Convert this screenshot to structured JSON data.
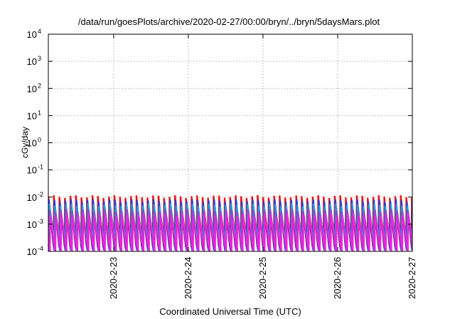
{
  "chart_data": {
    "type": "line",
    "title": "/data/run/goesPlots/archive/2020-02-27/00:00/bryn/../bryn/5daysMars.plot",
    "xlabel": "Coordinated Universal Time (UTC)",
    "ylabel": "cGy/day",
    "y_scale": "log",
    "ylim": [
      0.0001,
      10000
    ],
    "xlim": [
      "2020-02-22 03:00",
      "2020-02-27 00:00"
    ],
    "grid": true,
    "x_ticks": [
      "2020-2-23",
      "2020-2-24",
      "2020-2-25",
      "2020-2-26",
      "2020-2-27"
    ],
    "y_ticks": [
      {
        "base": "10",
        "exp": "-4"
      },
      {
        "base": "10",
        "exp": "-3"
      },
      {
        "base": "10",
        "exp": "-2"
      },
      {
        "base": "10",
        "exp": "-1"
      },
      {
        "base": "10",
        "exp": "0"
      },
      {
        "base": "10",
        "exp": "1"
      },
      {
        "base": "10",
        "exp": "2"
      },
      {
        "base": "10",
        "exp": "3"
      },
      {
        "base": "10",
        "exp": "4"
      }
    ],
    "sawtooth_period_hours": 1.77,
    "series": [
      {
        "color": "#ee1111",
        "peak": 0.0105,
        "trough": 0.00014,
        "phase_hours": 0.0
      },
      {
        "color": "#2a3fd0",
        "peak": 0.0075,
        "trough": 0.00011,
        "phase_hours": 0.18
      },
      {
        "color": "#2a9ad8",
        "peak": 0.0052,
        "trough": 0.00018,
        "phase_hours": 0.32
      },
      {
        "color": "#9944cc",
        "peak": 0.0032,
        "trough": 0.0001,
        "phase_hours": 0.46
      },
      {
        "color": "#ee22dd",
        "peak": 0.0022,
        "trough": 0.0001,
        "phase_hours": 0.6
      }
    ]
  }
}
